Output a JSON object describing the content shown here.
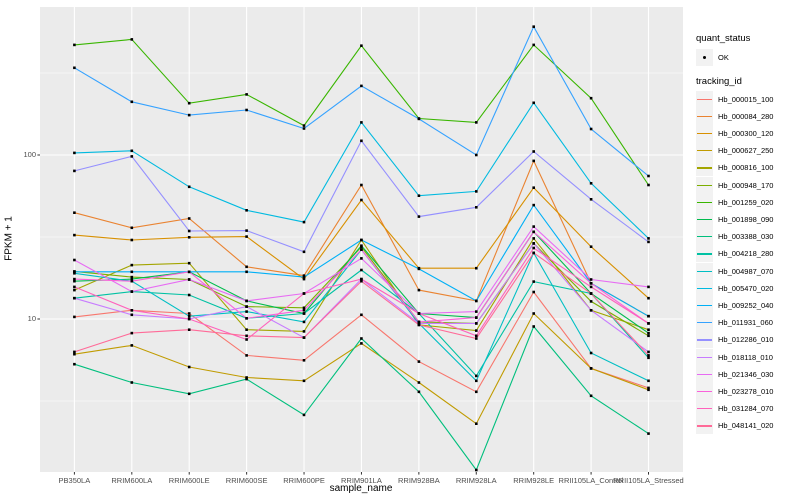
{
  "figure": {
    "x_axis_title": "sample_name",
    "y_axis_title": "FPKM + 1",
    "y_tick_labels": [
      "100",
      "10"
    ],
    "legend": {
      "quant_status_title": "quant_status",
      "quant_status_items": [
        "OK"
      ],
      "tracking_id_title": "tracking_id"
    }
  },
  "colors": {
    "panel_background": "#EBEBEB",
    "gridline": "#FFFFFF",
    "point_marker": "#000000",
    "tick_text": "#4D4D4D",
    "axis_title_text": "#000000",
    "legend_key_background": "#F2F2F2"
  },
  "chart_data": {
    "type": "line",
    "title": "",
    "xlabel": "sample_name",
    "ylabel": "FPKM + 1",
    "y_scale": "log10",
    "ylim": [
      1.17,
      800
    ],
    "y_major_gridlines": [
      10,
      100
    ],
    "y_minor_gridlines": [
      3.162,
      31.62,
      316.2
    ],
    "grid": true,
    "legend_position": "right",
    "marker": "black point (quant_status = OK)",
    "categories": [
      "PB350LA",
      "RRIM600LA",
      "RRIM600LE",
      "RRIM600SE",
      "RRIM600PE",
      "RRIM901LA",
      "RRIM928BA",
      "RRIM928LA",
      "RRIM928LE",
      "RRII105LA_Control",
      "RRII105LA_Stressed"
    ],
    "series": [
      {
        "name": "Hb_000015_100",
        "color": "#F8766D",
        "values": [
          10.3,
          11.3,
          10.8,
          6.0,
          5.6,
          10.6,
          5.5,
          3.6,
          14.6,
          5.0,
          3.8
        ]
      },
      {
        "name": "Hb_000084_280",
        "color": "#EA8331",
        "values": [
          44.5,
          36.0,
          41.0,
          20.8,
          18.4,
          65.6,
          15.0,
          12.9,
          92.0,
          16.5,
          10.4
        ]
      },
      {
        "name": "Hb_000300_120",
        "color": "#D89000",
        "values": [
          32.5,
          30.3,
          31.5,
          31.8,
          17.5,
          53.2,
          20.4,
          20.4,
          63.2,
          27.6,
          13.4
        ]
      },
      {
        "name": "Hb_000627_250",
        "color": "#C09B00",
        "values": [
          6.1,
          6.9,
          5.1,
          4.4,
          4.2,
          7.1,
          4.1,
          2.3,
          10.8,
          5.0,
          3.7
        ]
      },
      {
        "name": "Hb_000816_100",
        "color": "#A3A500",
        "values": [
          15.0,
          21.3,
          21.9,
          8.6,
          8.4,
          30.3,
          9.2,
          8.5,
          31.0,
          11.3,
          8.6
        ]
      },
      {
        "name": "Hb_000948_170",
        "color": "#7CAE00",
        "values": [
          19.5,
          18.0,
          17.4,
          11.9,
          11.7,
          27.5,
          9.6,
          9.4,
          28.9,
          12.8,
          7.9
        ]
      },
      {
        "name": "Hb_001259_020",
        "color": "#39B600",
        "values": [
          469,
          507,
          207,
          234,
          151,
          464,
          167,
          158,
          469,
          222,
          65.6
        ]
      },
      {
        "name": "Hb_001898_090",
        "color": "#00BB4E",
        "values": [
          17.0,
          17.5,
          19.4,
          12.9,
          10.8,
          28.0,
          10.8,
          10.2,
          34.0,
          14.3,
          8.2
        ]
      },
      {
        "name": "Hb_003388_030",
        "color": "#00BF7D",
        "values": [
          5.3,
          4.1,
          3.5,
          4.3,
          2.6,
          7.6,
          3.6,
          1.2,
          9.0,
          3.4,
          2.0
        ]
      },
      {
        "name": "Hb_004218_280",
        "color": "#00C1A3",
        "values": [
          13.4,
          14.7,
          14.0,
          10.1,
          10.8,
          19.9,
          10.8,
          4.5,
          16.9,
          14.3,
          5.8
        ]
      },
      {
        "name": "Hb_004987_070",
        "color": "#00BFC4",
        "values": [
          19.0,
          17.0,
          10.4,
          11.1,
          9.6,
          26.5,
          9.4,
          4.2,
          25.3,
          6.2,
          4.2
        ]
      },
      {
        "name": "Hb_005470_020",
        "color": "#00BAE0",
        "values": [
          103,
          106,
          64,
          46,
          39,
          158,
          56.5,
          60,
          208,
          67.2,
          31
        ]
      },
      {
        "name": "Hb_009252_040",
        "color": "#00B0F6",
        "values": [
          19.4,
          19.4,
          19.4,
          19.4,
          18.0,
          30.3,
          20.2,
          12.9,
          49.5,
          16.5,
          10.4
        ]
      },
      {
        "name": "Hb_011931_060",
        "color": "#35A2FF",
        "values": [
          340,
          211,
          175,
          188,
          145,
          264,
          166,
          100,
          606,
          144,
          74.5
        ]
      },
      {
        "name": "Hb_012286_010",
        "color": "#9590FF",
        "values": [
          80,
          98,
          34.4,
          34.6,
          25.7,
          122,
          42.1,
          48,
          105,
          53.7,
          29.5
        ]
      },
      {
        "name": "Hb_018118_010",
        "color": "#C77CFF",
        "values": [
          13.4,
          10.6,
          10.0,
          11.9,
          7.7,
          17.5,
          9.4,
          9.4,
          28.9,
          11.3,
          6.3
        ]
      },
      {
        "name": "Hb_021346_030",
        "color": "#E76BF3",
        "values": [
          22.9,
          14.7,
          17.4,
          12.9,
          14.3,
          23.4,
          10.8,
          11.1,
          36.6,
          17.4,
          15.7
        ]
      },
      {
        "name": "Hb_023278_010",
        "color": "#FA62DB",
        "values": [
          17.5,
          17.0,
          19.4,
          10.1,
          11.3,
          26.5,
          9.6,
          10.2,
          34.0,
          16.5,
          9.4
        ]
      },
      {
        "name": "Hb_031284_070",
        "color": "#FF62BC",
        "values": [
          15.7,
          11.3,
          10.0,
          7.5,
          14.3,
          17.5,
          10.8,
          7.9,
          27.1,
          15.7,
          9.4
        ]
      },
      {
        "name": "Hb_048141_020",
        "color": "#FF6A98",
        "values": [
          6.3,
          8.2,
          8.6,
          7.9,
          7.7,
          17.0,
          9.2,
          7.6,
          25.3,
          14.3,
          6.0
        ]
      }
    ]
  }
}
